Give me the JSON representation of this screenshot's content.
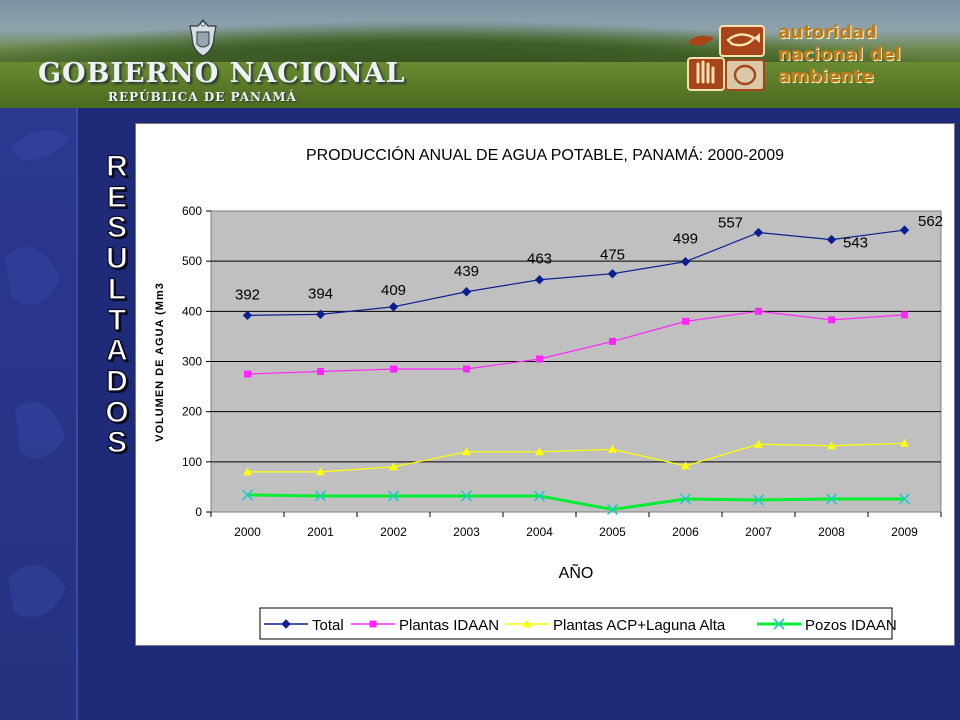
{
  "header": {
    "government_title": "GOBIERNO NACIONAL",
    "government_subtitle": "REPÚBLICA DE PANAMÁ",
    "agency_lines": [
      "autoridad",
      "nacional del",
      "ambiente"
    ]
  },
  "sidebar": {
    "vertical_title_letters": [
      "R",
      "E",
      "S",
      "U",
      "L",
      "T",
      "A",
      "D",
      "O",
      "S"
    ]
  },
  "colors": {
    "background": "#1f2a78",
    "plot_area": "#c0c0c0",
    "total": "#0b1f8f",
    "plantas_idaan": "#ff26ff",
    "plantas_acp": "#ffff00",
    "pozos": "#00ee33",
    "agency_text": "#c07a1a"
  },
  "chart_data": {
    "type": "line",
    "title": "PRODUCCIÓN ANUAL DE AGUA POTABLE,  PANAMÁ:  2000-2009",
    "xlabel": "AÑO",
    "ylabel": "VOLUMEN DE AGUA (Mm3",
    "categories": [
      "2000",
      "2001",
      "2002",
      "2003",
      "2004",
      "2005",
      "2006",
      "2007",
      "2008",
      "2009"
    ],
    "ylim": [
      0,
      600
    ],
    "yticks": [
      0,
      100,
      200,
      300,
      400,
      500,
      600
    ],
    "grid": true,
    "legend_position": "bottom",
    "series": [
      {
        "name": "Total",
        "color": "#0b1f8f",
        "marker": "diamond",
        "values": [
          392,
          394,
          409,
          439,
          463,
          475,
          499,
          557,
          543,
          562
        ],
        "labels": [
          "392",
          "394",
          "409",
          "439",
          "463",
          "475",
          "499",
          "557",
          "543",
          "562"
        ]
      },
      {
        "name": "Plantas IDAAN",
        "color": "#ff26ff",
        "marker": "square",
        "values": [
          275,
          280,
          285,
          285,
          305,
          340,
          380,
          400,
          383,
          393
        ]
      },
      {
        "name": "Plantas ACP+Laguna Alta",
        "color": "#ffff00",
        "marker": "triangle",
        "values": [
          80,
          80,
          90,
          120,
          120,
          125,
          92,
          135,
          132,
          137
        ]
      },
      {
        "name": "Pozos IDAAN",
        "color": "#00ee33",
        "marker": "x",
        "values": [
          34,
          32,
          32,
          32,
          32,
          5,
          26,
          24,
          26,
          26
        ]
      }
    ]
  }
}
